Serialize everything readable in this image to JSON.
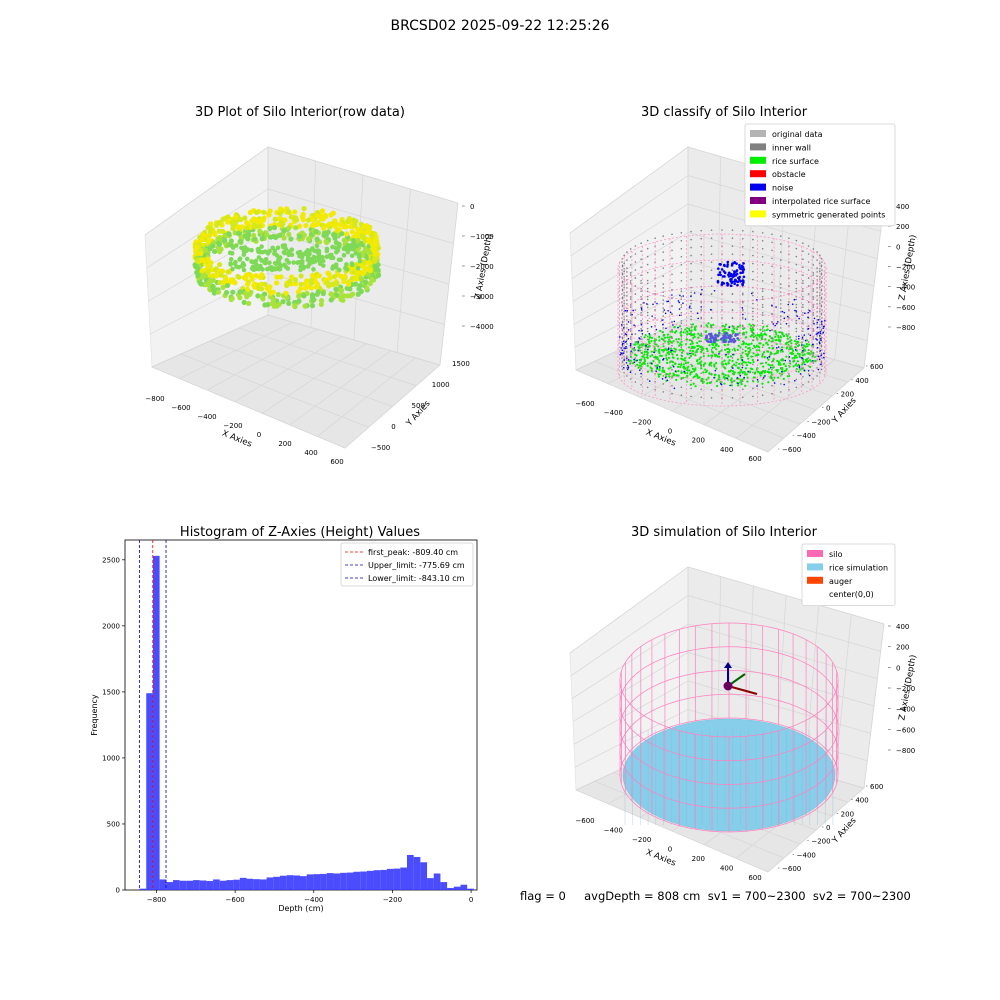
{
  "suptitle": "BRCSD02 2025-09-22 12:25:26",
  "status_line": "flag = 0     avgDepth = 808 cm  sv1 = 700~2300  sv2 = 700~2300",
  "chart_data": [
    {
      "type": "scatter",
      "title": "3D Plot of Silo Interior(row data)",
      "xlabel": "X Axies",
      "ylabel": "Y Axies",
      "zlabel": "Z Axies (Depth)",
      "xticks": [
        "−800",
        "−600",
        "−400",
        "−200",
        "0",
        "200",
        "400",
        "600"
      ],
      "yticks": [
        "−500",
        "0",
        "500",
        "1000",
        "1500"
      ],
      "zticks": [
        "0",
        "−1000",
        "−2000",
        "−3000",
        "−4000"
      ],
      "colors": {
        "low": "#7ed957",
        "high": "#f2ea00"
      }
    },
    {
      "type": "scatter",
      "title": "3D classify of Silo Interior",
      "xlabel": "X Axies",
      "ylabel": "Y Axies",
      "zlabel": "Z Axies (Depth)",
      "xticks": [
        "−600",
        "−400",
        "−200",
        "0",
        "200",
        "400",
        "600"
      ],
      "yticks": [
        "−600",
        "−400",
        "−200",
        "0",
        "200",
        "400",
        "600"
      ],
      "zticks": [
        "400",
        "200",
        "0",
        "−200",
        "−400",
        "−600",
        "−800"
      ],
      "legend_position": "top-right",
      "legend": [
        {
          "label": "original data",
          "color": "#b4b4b4"
        },
        {
          "label": "inner wall",
          "color": "#808080"
        },
        {
          "label": "rice surface",
          "color": "#00ee00"
        },
        {
          "label": "obstacle",
          "color": "#ff0000"
        },
        {
          "label": "noise",
          "color": "#0000ee"
        },
        {
          "label": "interpolated rice surface",
          "color": "#800080"
        },
        {
          "label": "symmetric generated points",
          "color": "#ffff00"
        }
      ]
    },
    {
      "type": "bar",
      "title": "Histogram of Z-Axies (Height) Values",
      "xlabel": "Depth (cm)",
      "ylabel": "Frequency",
      "xlim": [
        -880,
        15
      ],
      "ylim": [
        0,
        2650
      ],
      "xticks": [
        "−800",
        "−600",
        "−400",
        "−200",
        "0"
      ],
      "yticks": [
        "0",
        "500",
        "1000",
        "1500",
        "2000",
        "2500"
      ],
      "bar_color": "#3333ff",
      "bin_width": 17,
      "bin_starts": [
        -843,
        -826,
        -809,
        -792,
        -775,
        -758,
        -741,
        -724,
        -707,
        -690,
        -673,
        -656,
        -639,
        -622,
        -605,
        -588,
        -571,
        -554,
        -537,
        -520,
        -503,
        -486,
        -469,
        -452,
        -435,
        -418,
        -401,
        -384,
        -367,
        -350,
        -333,
        -316,
        -299,
        -282,
        -265,
        -248,
        -231,
        -214,
        -197,
        -180,
        -163,
        -146,
        -129,
        -112,
        -95,
        -78,
        -61,
        -44,
        -27,
        -10
      ],
      "values": [
        10,
        1490,
        2530,
        80,
        60,
        75,
        70,
        70,
        75,
        72,
        68,
        80,
        70,
        75,
        78,
        92,
        85,
        82,
        80,
        95,
        100,
        108,
        112,
        110,
        105,
        118,
        120,
        122,
        128,
        125,
        130,
        132,
        138,
        140,
        145,
        150,
        152,
        160,
        162,
        170,
        265,
        250,
        210,
        90,
        125,
        60,
        15,
        25,
        40,
        10
      ],
      "legend_position": "top-right",
      "lines": [
        {
          "label": "first_peak: -809.40 cm",
          "x": -809.4,
          "color": "#ff0000"
        },
        {
          "label": "Upper_limit: -775.69 cm",
          "x": -775.69,
          "color": "#0000cc"
        },
        {
          "label": "Lower_limit: -843.10 cm",
          "x": -843.1,
          "color": "#0000cc"
        }
      ]
    },
    {
      "type": "scatter",
      "title": "3D simulation of Silo Interior",
      "xlabel": "X Axies",
      "ylabel": "Y Axies",
      "zlabel": "Z Axies (Depth)",
      "xticks": [
        "−600",
        "−400",
        "−200",
        "0",
        "200",
        "400",
        "600"
      ],
      "yticks": [
        "−600",
        "−400",
        "−200",
        "0",
        "200",
        "400",
        "600"
      ],
      "zticks": [
        "400",
        "200",
        "0",
        "−200",
        "−400",
        "−600",
        "−800"
      ],
      "legend_position": "top-right",
      "legend": [
        {
          "label": "silo",
          "color": "#ff69b4"
        },
        {
          "label": "rice simulation",
          "color": "#87ceeb"
        },
        {
          "label": "auger",
          "color": "#ff4500"
        },
        {
          "label": "center(0,0)",
          "color": "#ffffff"
        }
      ]
    }
  ]
}
